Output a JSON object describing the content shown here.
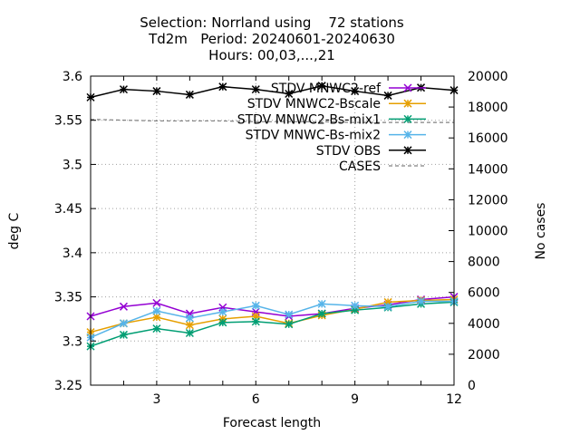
{
  "chart_data": {
    "type": "line",
    "title_lines": [
      "Selection: Norrland using    72 stations",
      "Td2m   Period: 20240601-20240630",
      "Hours: 00,03,...,21"
    ],
    "xlabel": "Forecast length",
    "ylabel": "deg C",
    "y2label": "No cases",
    "xlim": [
      1,
      12
    ],
    "ylim": [
      3.25,
      3.6
    ],
    "y2lim": [
      0,
      20000
    ],
    "xticks": [
      3,
      6,
      9,
      12
    ],
    "yticks": [
      3.25,
      3.3,
      3.35,
      3.4,
      3.45,
      3.5,
      3.55,
      3.6
    ],
    "y2ticks": [
      0,
      2000,
      4000,
      6000,
      8000,
      10000,
      12000,
      14000,
      16000,
      18000,
      20000
    ],
    "grid": true,
    "legend_position": "top-right",
    "x": [
      1,
      2,
      3,
      4,
      5,
      6,
      7,
      8,
      9,
      10,
      11,
      12
    ],
    "series": [
      {
        "name": "STDV MNWC2-ref",
        "color": "#9400d3",
        "marker": "cross",
        "axis": "y",
        "values": [
          3.328,
          3.339,
          3.343,
          3.331,
          3.338,
          3.333,
          3.328,
          3.331,
          3.337,
          3.341,
          3.347,
          3.35
        ]
      },
      {
        "name": "STDV MNWC2-Bscale",
        "color": "#e69f00",
        "marker": "star",
        "axis": "y",
        "values": [
          3.31,
          3.32,
          3.327,
          3.318,
          3.325,
          3.328,
          3.32,
          3.329,
          3.336,
          3.344,
          3.346,
          3.347
        ]
      },
      {
        "name": "STDV MNWC2-Bs-mix1",
        "color": "#009e73",
        "marker": "star",
        "axis": "y",
        "values": [
          3.294,
          3.307,
          3.314,
          3.309,
          3.321,
          3.322,
          3.319,
          3.331,
          3.335,
          3.338,
          3.342,
          3.344
        ]
      },
      {
        "name": "STDV MNWC-Bs-mix2",
        "color": "#56b4e9",
        "marker": "star",
        "axis": "y",
        "values": [
          3.304,
          3.32,
          3.334,
          3.326,
          3.333,
          3.34,
          3.33,
          3.342,
          3.34,
          3.339,
          3.345,
          3.345
        ]
      },
      {
        "name": "STDV OBS",
        "color": "#000000",
        "marker": "star",
        "axis": "y",
        "values": [
          3.576,
          3.585,
          3.583,
          3.579,
          3.588,
          3.585,
          3.58,
          3.589,
          3.583,
          3.578,
          3.587,
          3.584
        ]
      },
      {
        "name": "CASES",
        "color": "#808080",
        "marker": "none",
        "dashed": true,
        "axis": "y2",
        "values": [
          17200,
          17150,
          17100,
          17100,
          17100,
          17050,
          17050,
          17050,
          17000,
          17000,
          17000,
          17000
        ]
      }
    ]
  }
}
